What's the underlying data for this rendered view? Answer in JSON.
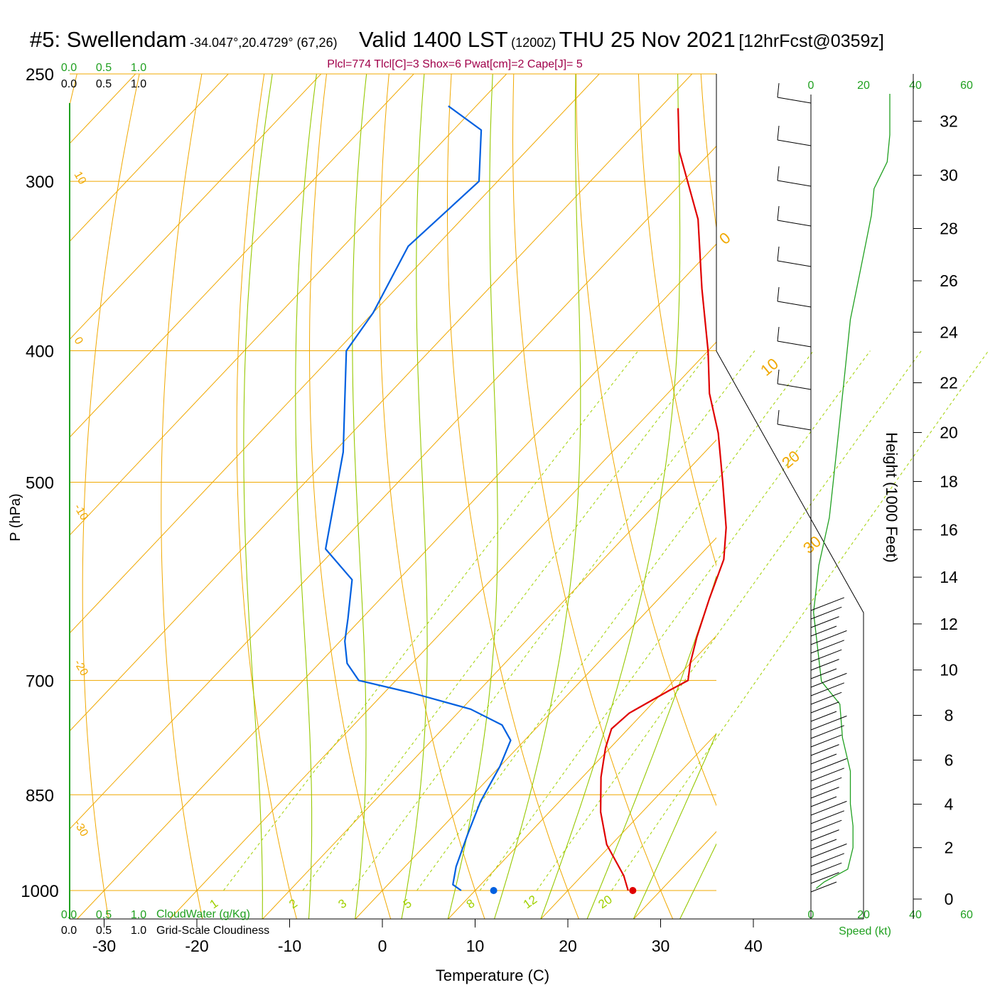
{
  "title": {
    "station": "#5: Swellendam",
    "coords": "-34.047°,20.4729° (67,26)",
    "valid": "Valid 1400 LST",
    "zulu": "(1200Z)",
    "date": "THU 25 Nov 2021",
    "forecast": "[12hrFcst@0359z]"
  },
  "info_line": "Plcl=774 Tlcl[C]=3 Shox=6 Pwat[cm]=2 Cape[J]= 5",
  "colors": {
    "isobar": "#f0a800",
    "isotherm": "#f0a800",
    "dry_adiabat": "#8cc83c",
    "moist_adiabat": "#96c800",
    "mixing_ratio": "#a0d000",
    "temperature": "#e00000",
    "dewpoint": "#0060e0",
    "wind_speed": "#20a020",
    "cloud_axis": "#20a020",
    "info": "#a0004a"
  },
  "chart_data": {
    "type": "skew-t",
    "xlabel": "Temperature (C)",
    "ylabel": "P (hPa)",
    "y2label": "Height (1000 Feet)",
    "x_ticks": [
      -30,
      -20,
      -10,
      0,
      10,
      20,
      30,
      40
    ],
    "pressure_ticks": [
      250,
      300,
      400,
      500,
      700,
      850,
      1000
    ],
    "height_ticks": [
      0,
      2,
      4,
      6,
      8,
      10,
      12,
      14,
      16,
      18,
      20,
      22,
      24,
      26,
      28,
      30,
      32
    ],
    "isotherm_labels": [
      0,
      10,
      20,
      30
    ],
    "left_isotherm_labels": [
      10,
      0,
      -10,
      -20,
      -30
    ],
    "mixing_ratio_labels": [
      "1",
      "2",
      "3",
      "5",
      "8",
      "12",
      "20"
    ],
    "cloud_axis": {
      "top_green": [
        "0.0",
        "0.5",
        "1.0"
      ],
      "top_black": [
        "0.0",
        "0.5",
        "1.0"
      ],
      "bottom_green": [
        "0.0",
        "0.5",
        "1.0"
      ],
      "bottom_black": [
        "0.0",
        "0.5",
        "1.0"
      ],
      "cloudwater_label": "CloudWater (g/Kg)",
      "cloudiness_label": "Grid-Scale Cloudiness"
    },
    "speed_axis": {
      "ticks": [
        "0",
        "20",
        "40",
        "60"
      ],
      "label": "Speed (kt)"
    },
    "temperature": {
      "name": "Temperature",
      "points": [
        [
          26.5,
          1000
        ],
        [
          24.5,
          975
        ],
        [
          19.5,
          925
        ],
        [
          15.5,
          875
        ],
        [
          12.0,
          825
        ],
        [
          9.5,
          785
        ],
        [
          8.2,
          760
        ],
        [
          8.5,
          740
        ],
        [
          10.5,
          712
        ],
        [
          11.5,
          700
        ],
        [
          10.0,
          680
        ],
        [
          8.0,
          650
        ],
        [
          5.5,
          610
        ],
        [
          3.0,
          570
        ],
        [
          0.0,
          540
        ],
        [
          -5.0,
          500
        ],
        [
          -10.5,
          460
        ],
        [
          -15.5,
          430
        ],
        [
          -20.0,
          400
        ],
        [
          -27.0,
          360
        ],
        [
          -34.5,
          320
        ],
        [
          -43.5,
          285
        ],
        [
          -48.0,
          265
        ]
      ]
    },
    "dewpoint": {
      "name": "Dewpoint",
      "points": [
        [
          8.5,
          1000
        ],
        [
          7.0,
          990
        ],
        [
          5.5,
          960
        ],
        [
          3.5,
          910
        ],
        [
          1.5,
          860
        ],
        [
          0.0,
          810
        ],
        [
          -1.5,
          775
        ],
        [
          -4.0,
          755
        ],
        [
          -9.0,
          735
        ],
        [
          -17.0,
          715
        ],
        [
          -24.0,
          700
        ],
        [
          -27.0,
          680
        ],
        [
          -29.5,
          655
        ],
        [
          -31.5,
          630
        ],
        [
          -35.0,
          590
        ],
        [
          -41.0,
          560
        ],
        [
          -49.0,
          475
        ],
        [
          -59.0,
          400
        ],
        [
          -60.0,
          375
        ],
        [
          -63.0,
          335
        ],
        [
          -62.0,
          300
        ],
        [
          -67.0,
          275
        ],
        [
          -73.0,
          264
        ]
      ]
    },
    "surface_temperature": 27,
    "surface_dewpoint": 12,
    "wind_speed_profile": {
      "speed_kt": [
        2,
        5,
        14,
        16,
        16,
        15,
        15,
        12,
        11,
        4,
        3,
        2,
        1,
        2,
        3,
        5,
        7,
        8,
        9,
        10,
        11,
        12,
        13,
        14,
        15,
        17,
        19,
        21,
        23,
        24,
        29,
        30,
        30
      ],
      "height_kft": [
        0.1,
        0.4,
        1.0,
        2.0,
        3.0,
        4.0,
        5.5,
        7.0,
        8.5,
        9.5,
        10.5,
        11.5,
        12.5,
        13.5,
        14.5,
        15.5,
        16.5,
        17.5,
        18.5,
        19.5,
        20.5,
        21.5,
        22.5,
        23.5,
        24.5,
        25.5,
        26.5,
        27.5,
        28.5,
        29.5,
        30.5,
        31.5,
        33.0
      ]
    }
  }
}
